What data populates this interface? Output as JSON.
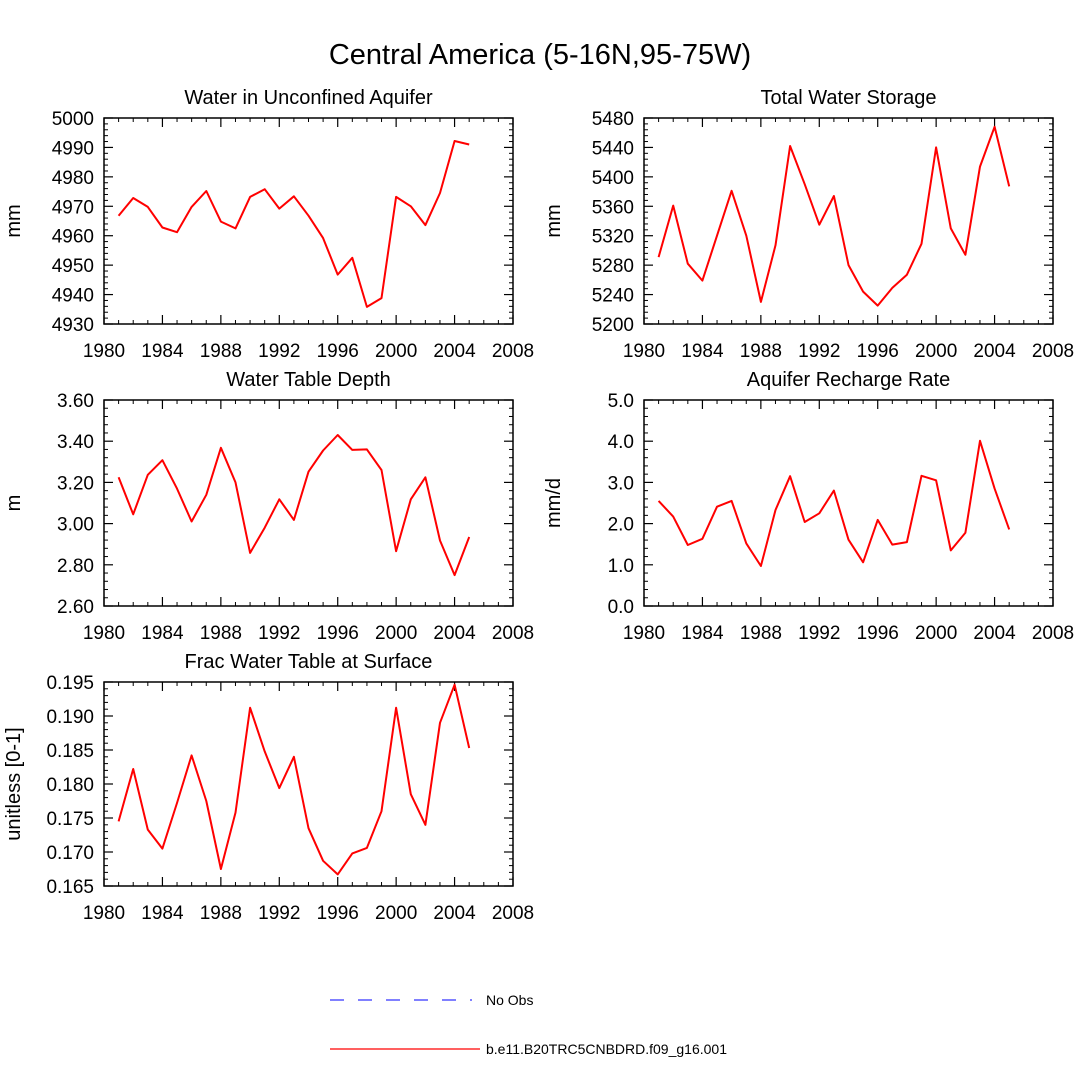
{
  "figure": {
    "title": "Central America (5-16N,95-75W)"
  },
  "legend": [
    {
      "label": "No Obs",
      "color": "#0000ff",
      "dash": "dashed"
    },
    {
      "label": "b.e11.B20TRC5CNBDRD.f09_g16.001",
      "color": "#ff0000",
      "dash": "solid"
    }
  ],
  "chart_data": [
    {
      "type": "line",
      "title": "Water in Unconfined Aquifer",
      "xlabel": "",
      "ylabel": "mm",
      "xlim": [
        1980,
        2008
      ],
      "ylim": [
        4930,
        5000
      ],
      "xticks": [
        "1980",
        "1984",
        "1988",
        "1992",
        "1996",
        "2000",
        "2004",
        "2008"
      ],
      "yticks": [
        "4930",
        "4940",
        "4950",
        "4960",
        "4970",
        "4980",
        "4990",
        "5000"
      ],
      "grid": false,
      "x": [
        1981,
        1982,
        1983,
        1984,
        1985,
        1986,
        1987,
        1988,
        1989,
        1990,
        1991,
        1992,
        1993,
        1994,
        1995,
        1996,
        1997,
        1998,
        1999,
        2000,
        2001,
        2002,
        2003,
        2004,
        2005
      ],
      "series": [
        {
          "color": "#ff0000",
          "values": [
            4966.8,
            4972.8,
            4969.8,
            4962.8,
            4961.2,
            4969.8,
            4975.2,
            4964.8,
            4962.5,
            4973.2,
            4975.8,
            4969.2,
            4973.4,
            4966.8,
            4959.2,
            4946.8,
            4952.5,
            4935.8,
            4938.8,
            4973.2,
            4970.0,
            4963.6,
            4974.5,
            4992.2,
            4991.0
          ]
        }
      ]
    },
    {
      "type": "line",
      "title": "Total Water Storage",
      "xlabel": "",
      "ylabel": "mm",
      "xlim": [
        1980,
        2008
      ],
      "ylim": [
        5200,
        5480
      ],
      "xticks": [
        "1980",
        "1984",
        "1988",
        "1992",
        "1996",
        "2000",
        "2004",
        "2008"
      ],
      "yticks": [
        "5200",
        "5240",
        "5280",
        "5320",
        "5360",
        "5400",
        "5440",
        "5480"
      ],
      "grid": false,
      "x": [
        1981,
        1982,
        1983,
        1984,
        1985,
        1986,
        1987,
        1988,
        1989,
        1990,
        1991,
        1992,
        1993,
        1994,
        1995,
        1996,
        1997,
        1998,
        1999,
        2000,
        2001,
        2002,
        2003,
        2004,
        2005
      ],
      "series": [
        {
          "color": "#ff0000",
          "values": [
            5291,
            5361,
            5282,
            5259,
            5320,
            5381,
            5320,
            5230,
            5307,
            5442,
            5390,
            5335,
            5374,
            5280,
            5244,
            5225,
            5249,
            5267,
            5309,
            5440,
            5330,
            5294,
            5414,
            5468,
            5387
          ]
        }
      ]
    },
    {
      "type": "line",
      "title": "Water Table Depth",
      "xlabel": "",
      "ylabel": "m",
      "xlim": [
        1980,
        2008
      ],
      "ylim": [
        2.6,
        3.6
      ],
      "xticks": [
        "1980",
        "1984",
        "1988",
        "1992",
        "1996",
        "2000",
        "2004",
        "2008"
      ],
      "yticks": [
        "2.60",
        "2.80",
        "3.00",
        "3.20",
        "3.40",
        "3.60"
      ],
      "grid": false,
      "x": [
        1981,
        1982,
        1983,
        1984,
        1985,
        1986,
        1987,
        1988,
        1989,
        1990,
        1991,
        1992,
        1993,
        1994,
        1995,
        1996,
        1997,
        1998,
        1999,
        2000,
        2001,
        2002,
        2003,
        2004,
        2005
      ],
      "series": [
        {
          "color": "#ff0000",
          "values": [
            3.225,
            3.045,
            3.237,
            3.308,
            3.17,
            3.01,
            3.14,
            3.368,
            3.2,
            2.858,
            2.98,
            3.118,
            3.018,
            3.252,
            3.355,
            3.43,
            3.358,
            3.36,
            3.26,
            2.866,
            3.118,
            3.225,
            2.918,
            2.75,
            2.935
          ]
        }
      ]
    },
    {
      "type": "line",
      "title": "Aquifer Recharge Rate",
      "xlabel": "",
      "ylabel": "mm/d",
      "xlim": [
        1980,
        2008
      ],
      "ylim": [
        0.0,
        5.0
      ],
      "xticks": [
        "1980",
        "1984",
        "1988",
        "1992",
        "1996",
        "2000",
        "2004",
        "2008"
      ],
      "yticks": [
        "0.0",
        "1.0",
        "2.0",
        "3.0",
        "4.0",
        "5.0"
      ],
      "grid": false,
      "x": [
        1981,
        1982,
        1983,
        1984,
        1985,
        1986,
        1987,
        1988,
        1989,
        1990,
        1991,
        1992,
        1993,
        1994,
        1995,
        1996,
        1997,
        1998,
        1999,
        2000,
        2001,
        2002,
        2003,
        2004,
        2005
      ],
      "series": [
        {
          "color": "#ff0000",
          "values": [
            2.55,
            2.17,
            1.48,
            1.63,
            2.41,
            2.55,
            1.52,
            0.97,
            2.33,
            3.15,
            2.04,
            2.25,
            2.8,
            1.61,
            1.06,
            2.09,
            1.49,
            1.55,
            3.16,
            3.05,
            1.35,
            1.78,
            4.01,
            2.85,
            1.86
          ]
        }
      ]
    },
    {
      "type": "line",
      "title": "Frac Water Table at Surface",
      "xlabel": "",
      "ylabel": "unitless [0-1]",
      "xlim": [
        1980,
        2008
      ],
      "ylim": [
        0.165,
        0.195
      ],
      "xticks": [
        "1980",
        "1984",
        "1988",
        "1992",
        "1996",
        "2000",
        "2004",
        "2008"
      ],
      "yticks": [
        "0.165",
        "0.170",
        "0.175",
        "0.180",
        "0.185",
        "0.190",
        "0.195"
      ],
      "grid": false,
      "x": [
        1981,
        1982,
        1983,
        1984,
        1985,
        1986,
        1987,
        1988,
        1989,
        1990,
        1991,
        1992,
        1993,
        1994,
        1995,
        1996,
        1997,
        1998,
        1999,
        2000,
        2001,
        2002,
        2003,
        2004,
        2005
      ],
      "series": [
        {
          "color": "#ff0000",
          "values": [
            0.1745,
            0.1822,
            0.1733,
            0.1705,
            0.1772,
            0.1842,
            0.1775,
            0.1675,
            0.1758,
            0.1912,
            0.1848,
            0.1794,
            0.184,
            0.1735,
            0.1687,
            0.1667,
            0.1698,
            0.1706,
            0.176,
            0.1912,
            0.1785,
            0.174,
            0.189,
            0.1946,
            0.1853
          ]
        }
      ]
    }
  ]
}
